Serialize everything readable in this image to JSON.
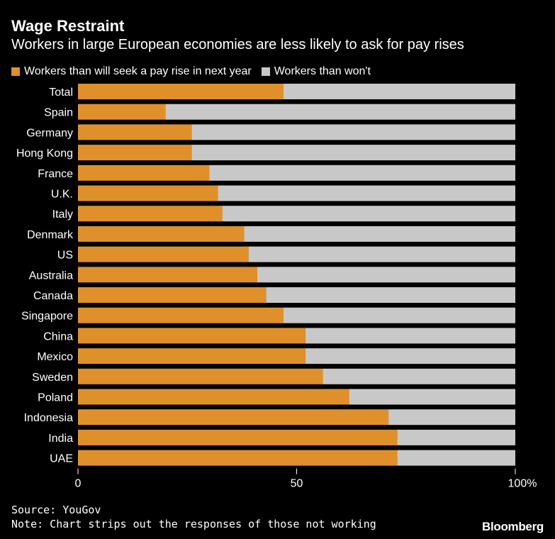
{
  "colors": {
    "background": "#000000",
    "seek": "#e0902a",
    "wont": "#c8c8c8",
    "text": "#ffffff"
  },
  "chart_data": {
    "type": "bar",
    "orientation": "horizontal",
    "stacked": true,
    "title": "Wage Restraint",
    "subtitle": "Workers in large European economies are less likely to ask for pay rises",
    "categories": [
      "Total",
      "Spain",
      "Germany",
      "Hong Kong",
      "France",
      "U.K.",
      "Italy",
      "Denmark",
      "US",
      "Australia",
      "Canada",
      "Singapore",
      "China",
      "Mexico",
      "Sweden",
      "Poland",
      "Indonesia",
      "India",
      "UAE"
    ],
    "series": [
      {
        "name": "Workers than will seek a pay rise in next year",
        "color": "#e0902a",
        "values": [
          47,
          20,
          26,
          26,
          30,
          32,
          33,
          38,
          39,
          41,
          43,
          47,
          52,
          52,
          56,
          62,
          71,
          73,
          73
        ]
      },
      {
        "name": "Workers than won't",
        "color": "#c8c8c8",
        "values": [
          53,
          80,
          74,
          74,
          70,
          68,
          67,
          62,
          61,
          59,
          57,
          53,
          48,
          48,
          44,
          38,
          29,
          27,
          27
        ]
      }
    ],
    "xlim": [
      0,
      100
    ],
    "xticks": [
      0,
      50,
      100
    ],
    "xtick_labels": [
      "0",
      "50",
      "100%"
    ],
    "legend_position": "top-left"
  },
  "footer": {
    "source": "Source: YouGov",
    "note": "Note: Chart strips out the responses of those not working",
    "brand": "Bloomberg"
  }
}
